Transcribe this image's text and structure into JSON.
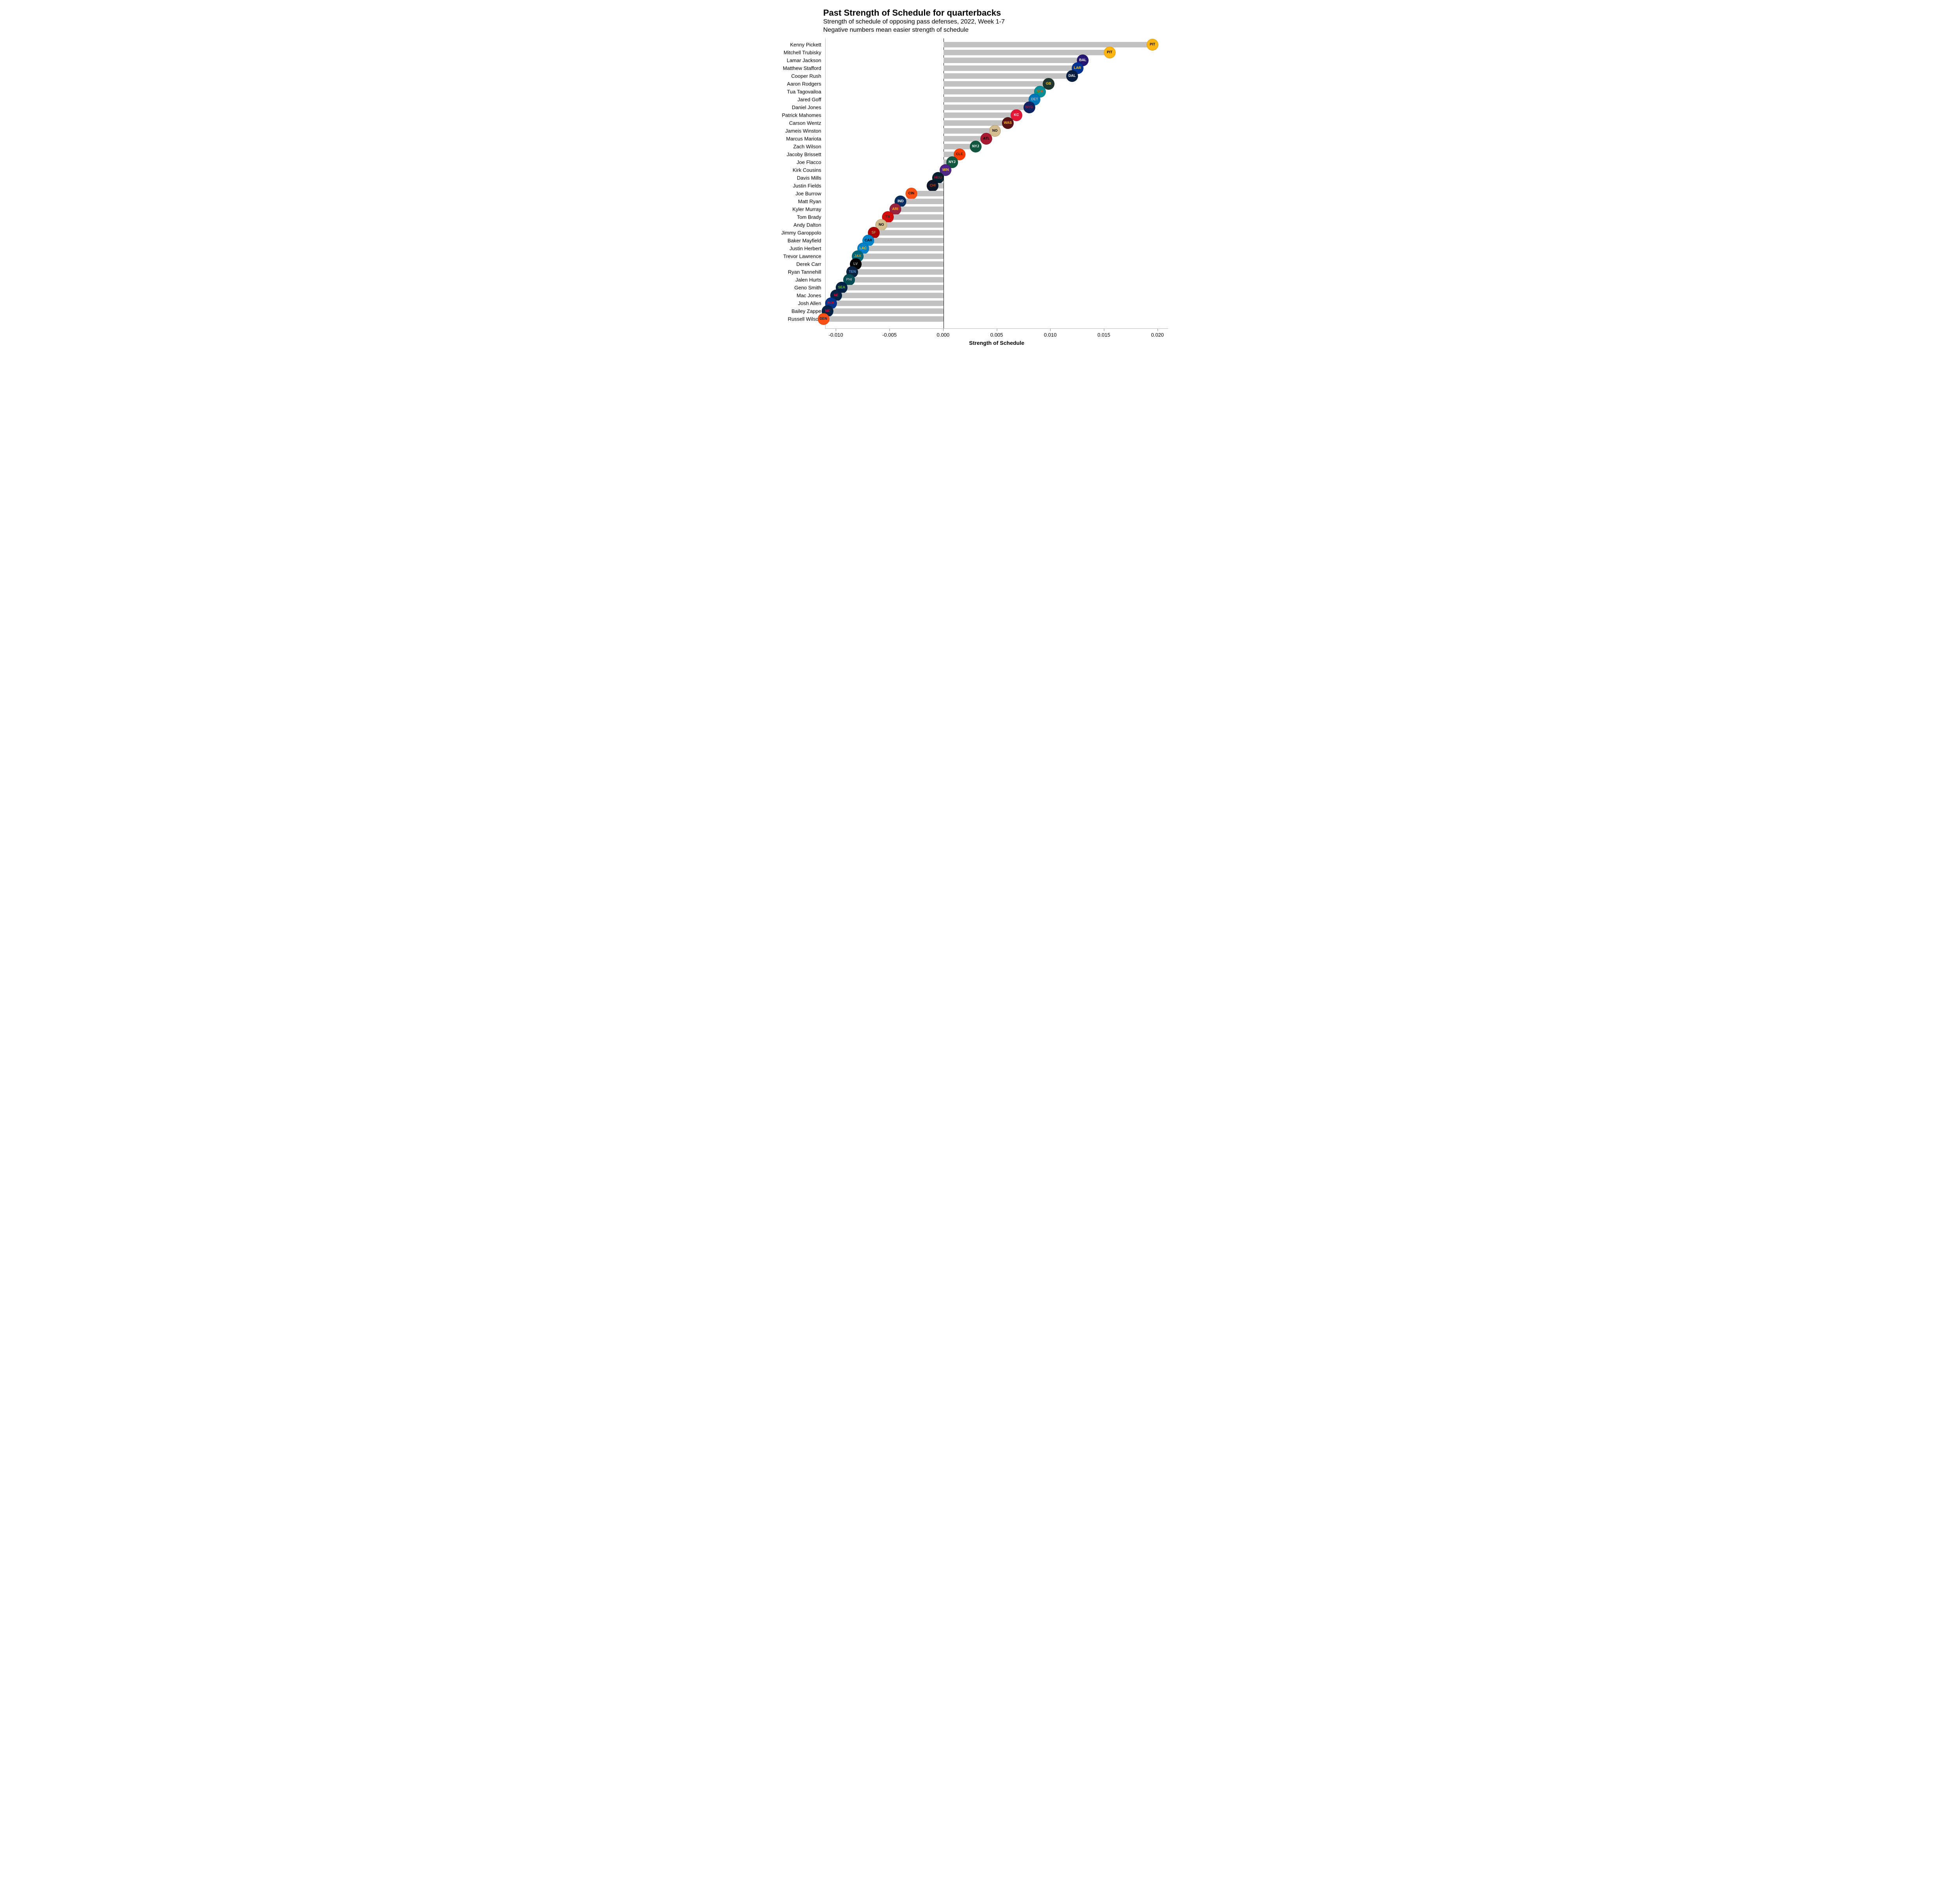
{
  "chart": {
    "type": "bar-horizontal",
    "title": "Past Strength of Schedule for quarterbacks",
    "subtitle_line1": "Strength of schedule of opposing pass defenses, 2022, Week 1-7",
    "subtitle_line2": "Negative numbers mean easier strength of schedule",
    "x_axis_label": "Strength of Schedule",
    "xlim_min": -0.011,
    "xlim_max": 0.021,
    "x_ticks": [
      -0.01,
      -0.005,
      0.0,
      0.005,
      0.01,
      0.015,
      0.02
    ],
    "x_tick_labels": [
      "-0.010",
      "-0.005",
      "0.000",
      "0.005",
      "0.010",
      "0.015",
      "0.020"
    ],
    "bar_color": "#c2c2c2",
    "zero_line_color": "#000000",
    "background_color": "#ffffff",
    "title_fontsize": 22,
    "subtitle_fontsize": 16,
    "label_fontsize": 13,
    "logo_size": 28,
    "players": [
      {
        "name": "Kenny Pickett",
        "value": 0.0195,
        "team_abbr": "PIT",
        "logo_bg": "#ffb612",
        "logo_fg": "#000000"
      },
      {
        "name": "Mitchell Trubisky",
        "value": 0.0155,
        "team_abbr": "PIT",
        "logo_bg": "#ffb612",
        "logo_fg": "#000000"
      },
      {
        "name": "Lamar Jackson",
        "value": 0.013,
        "team_abbr": "BAL",
        "logo_bg": "#241773",
        "logo_fg": "#ffffff"
      },
      {
        "name": "Matthew Stafford",
        "value": 0.0125,
        "team_abbr": "LAR",
        "logo_bg": "#003594",
        "logo_fg": "#ffd100"
      },
      {
        "name": "Cooper Rush",
        "value": 0.012,
        "team_abbr": "DAL",
        "logo_bg": "#041e42",
        "logo_fg": "#ffffff"
      },
      {
        "name": "Aaron Rodgers",
        "value": 0.0098,
        "team_abbr": "GB",
        "logo_bg": "#203731",
        "logo_fg": "#ffb612"
      },
      {
        "name": "Tua Tagovailoa",
        "value": 0.009,
        "team_abbr": "MIA",
        "logo_bg": "#008e97",
        "logo_fg": "#fc4c02"
      },
      {
        "name": "Jared Goff",
        "value": 0.0085,
        "team_abbr": "DET",
        "logo_bg": "#0076b6",
        "logo_fg": "#b0b7bc"
      },
      {
        "name": "Daniel Jones",
        "value": 0.008,
        "team_abbr": "NYG",
        "logo_bg": "#0b2265",
        "logo_fg": "#a71930"
      },
      {
        "name": "Patrick Mahomes",
        "value": 0.0068,
        "team_abbr": "KC",
        "logo_bg": "#e31837",
        "logo_fg": "#ffffff"
      },
      {
        "name": "Carson Wentz",
        "value": 0.006,
        "team_abbr": "WAS",
        "logo_bg": "#5a1414",
        "logo_fg": "#ffb612"
      },
      {
        "name": "Jameis Winston",
        "value": 0.0048,
        "team_abbr": "NO",
        "logo_bg": "#d3bc8d",
        "logo_fg": "#000000"
      },
      {
        "name": "Marcus Mariota",
        "value": 0.004,
        "team_abbr": "ATL",
        "logo_bg": "#a71930",
        "logo_fg": "#000000"
      },
      {
        "name": "Zach Wilson",
        "value": 0.003,
        "team_abbr": "NYJ",
        "logo_bg": "#125740",
        "logo_fg": "#ffffff"
      },
      {
        "name": "Jacoby Brissett",
        "value": 0.0015,
        "team_abbr": "CLE",
        "logo_bg": "#ff3c00",
        "logo_fg": "#311d00"
      },
      {
        "name": "Joe Flacco",
        "value": 0.0008,
        "team_abbr": "NYJ",
        "logo_bg": "#125740",
        "logo_fg": "#ffffff"
      },
      {
        "name": "Kirk Cousins",
        "value": 0.0002,
        "team_abbr": "MIN",
        "logo_bg": "#4f2683",
        "logo_fg": "#ffc62f"
      },
      {
        "name": "Davis Mills",
        "value": -0.0005,
        "team_abbr": "HOU",
        "logo_bg": "#03202f",
        "logo_fg": "#a71930"
      },
      {
        "name": "Justin Fields",
        "value": -0.001,
        "team_abbr": "CHI",
        "logo_bg": "#0b162a",
        "logo_fg": "#c83803"
      },
      {
        "name": "Joe Burrow",
        "value": -0.003,
        "team_abbr": "CIN",
        "logo_bg": "#fb4f14",
        "logo_fg": "#000000"
      },
      {
        "name": "Matt Ryan",
        "value": -0.004,
        "team_abbr": "IND",
        "logo_bg": "#002c5f",
        "logo_fg": "#ffffff"
      },
      {
        "name": "Kyler Murray",
        "value": -0.0045,
        "team_abbr": "ARI",
        "logo_bg": "#97233f",
        "logo_fg": "#ffb612"
      },
      {
        "name": "Tom Brady",
        "value": -0.0052,
        "team_abbr": "TB",
        "logo_bg": "#d50a0a",
        "logo_fg": "#34302b"
      },
      {
        "name": "Andy Dalton",
        "value": -0.0058,
        "team_abbr": "NO",
        "logo_bg": "#d3bc8d",
        "logo_fg": "#000000"
      },
      {
        "name": "Jimmy Garoppolo",
        "value": -0.0065,
        "team_abbr": "SF",
        "logo_bg": "#aa0000",
        "logo_fg": "#b3995d"
      },
      {
        "name": "Baker Mayfield",
        "value": -0.007,
        "team_abbr": "CAR",
        "logo_bg": "#0085ca",
        "logo_fg": "#000000"
      },
      {
        "name": "Justin Herbert",
        "value": -0.0075,
        "team_abbr": "LAC",
        "logo_bg": "#0080c6",
        "logo_fg": "#ffc20e"
      },
      {
        "name": "Trevor Lawrence",
        "value": -0.008,
        "team_abbr": "JAX",
        "logo_bg": "#006778",
        "logo_fg": "#d7a22a"
      },
      {
        "name": "Derek Carr",
        "value": -0.0082,
        "team_abbr": "LV",
        "logo_bg": "#000000",
        "logo_fg": "#a5acaf"
      },
      {
        "name": "Ryan Tannehill",
        "value": -0.0085,
        "team_abbr": "TEN",
        "logo_bg": "#0c2340",
        "logo_fg": "#4b92db"
      },
      {
        "name": "Jalen Hurts",
        "value": -0.0088,
        "team_abbr": "PHI",
        "logo_bg": "#004c54",
        "logo_fg": "#a5acaf"
      },
      {
        "name": "Geno Smith",
        "value": -0.0095,
        "team_abbr": "SEA",
        "logo_bg": "#002244",
        "logo_fg": "#69be28"
      },
      {
        "name": "Mac Jones",
        "value": -0.01,
        "team_abbr": "NE",
        "logo_bg": "#002244",
        "logo_fg": "#c60c30"
      },
      {
        "name": "Josh Allen",
        "value": -0.0105,
        "team_abbr": "BUF",
        "logo_bg": "#00338d",
        "logo_fg": "#c60c30"
      },
      {
        "name": "Bailey Zappe",
        "value": -0.0108,
        "team_abbr": "NE",
        "logo_bg": "#002244",
        "logo_fg": "#c60c30"
      },
      {
        "name": "Russell Wilson",
        "value": -0.0112,
        "team_abbr": "DEN",
        "logo_bg": "#fb4f14",
        "logo_fg": "#002244"
      }
    ]
  }
}
